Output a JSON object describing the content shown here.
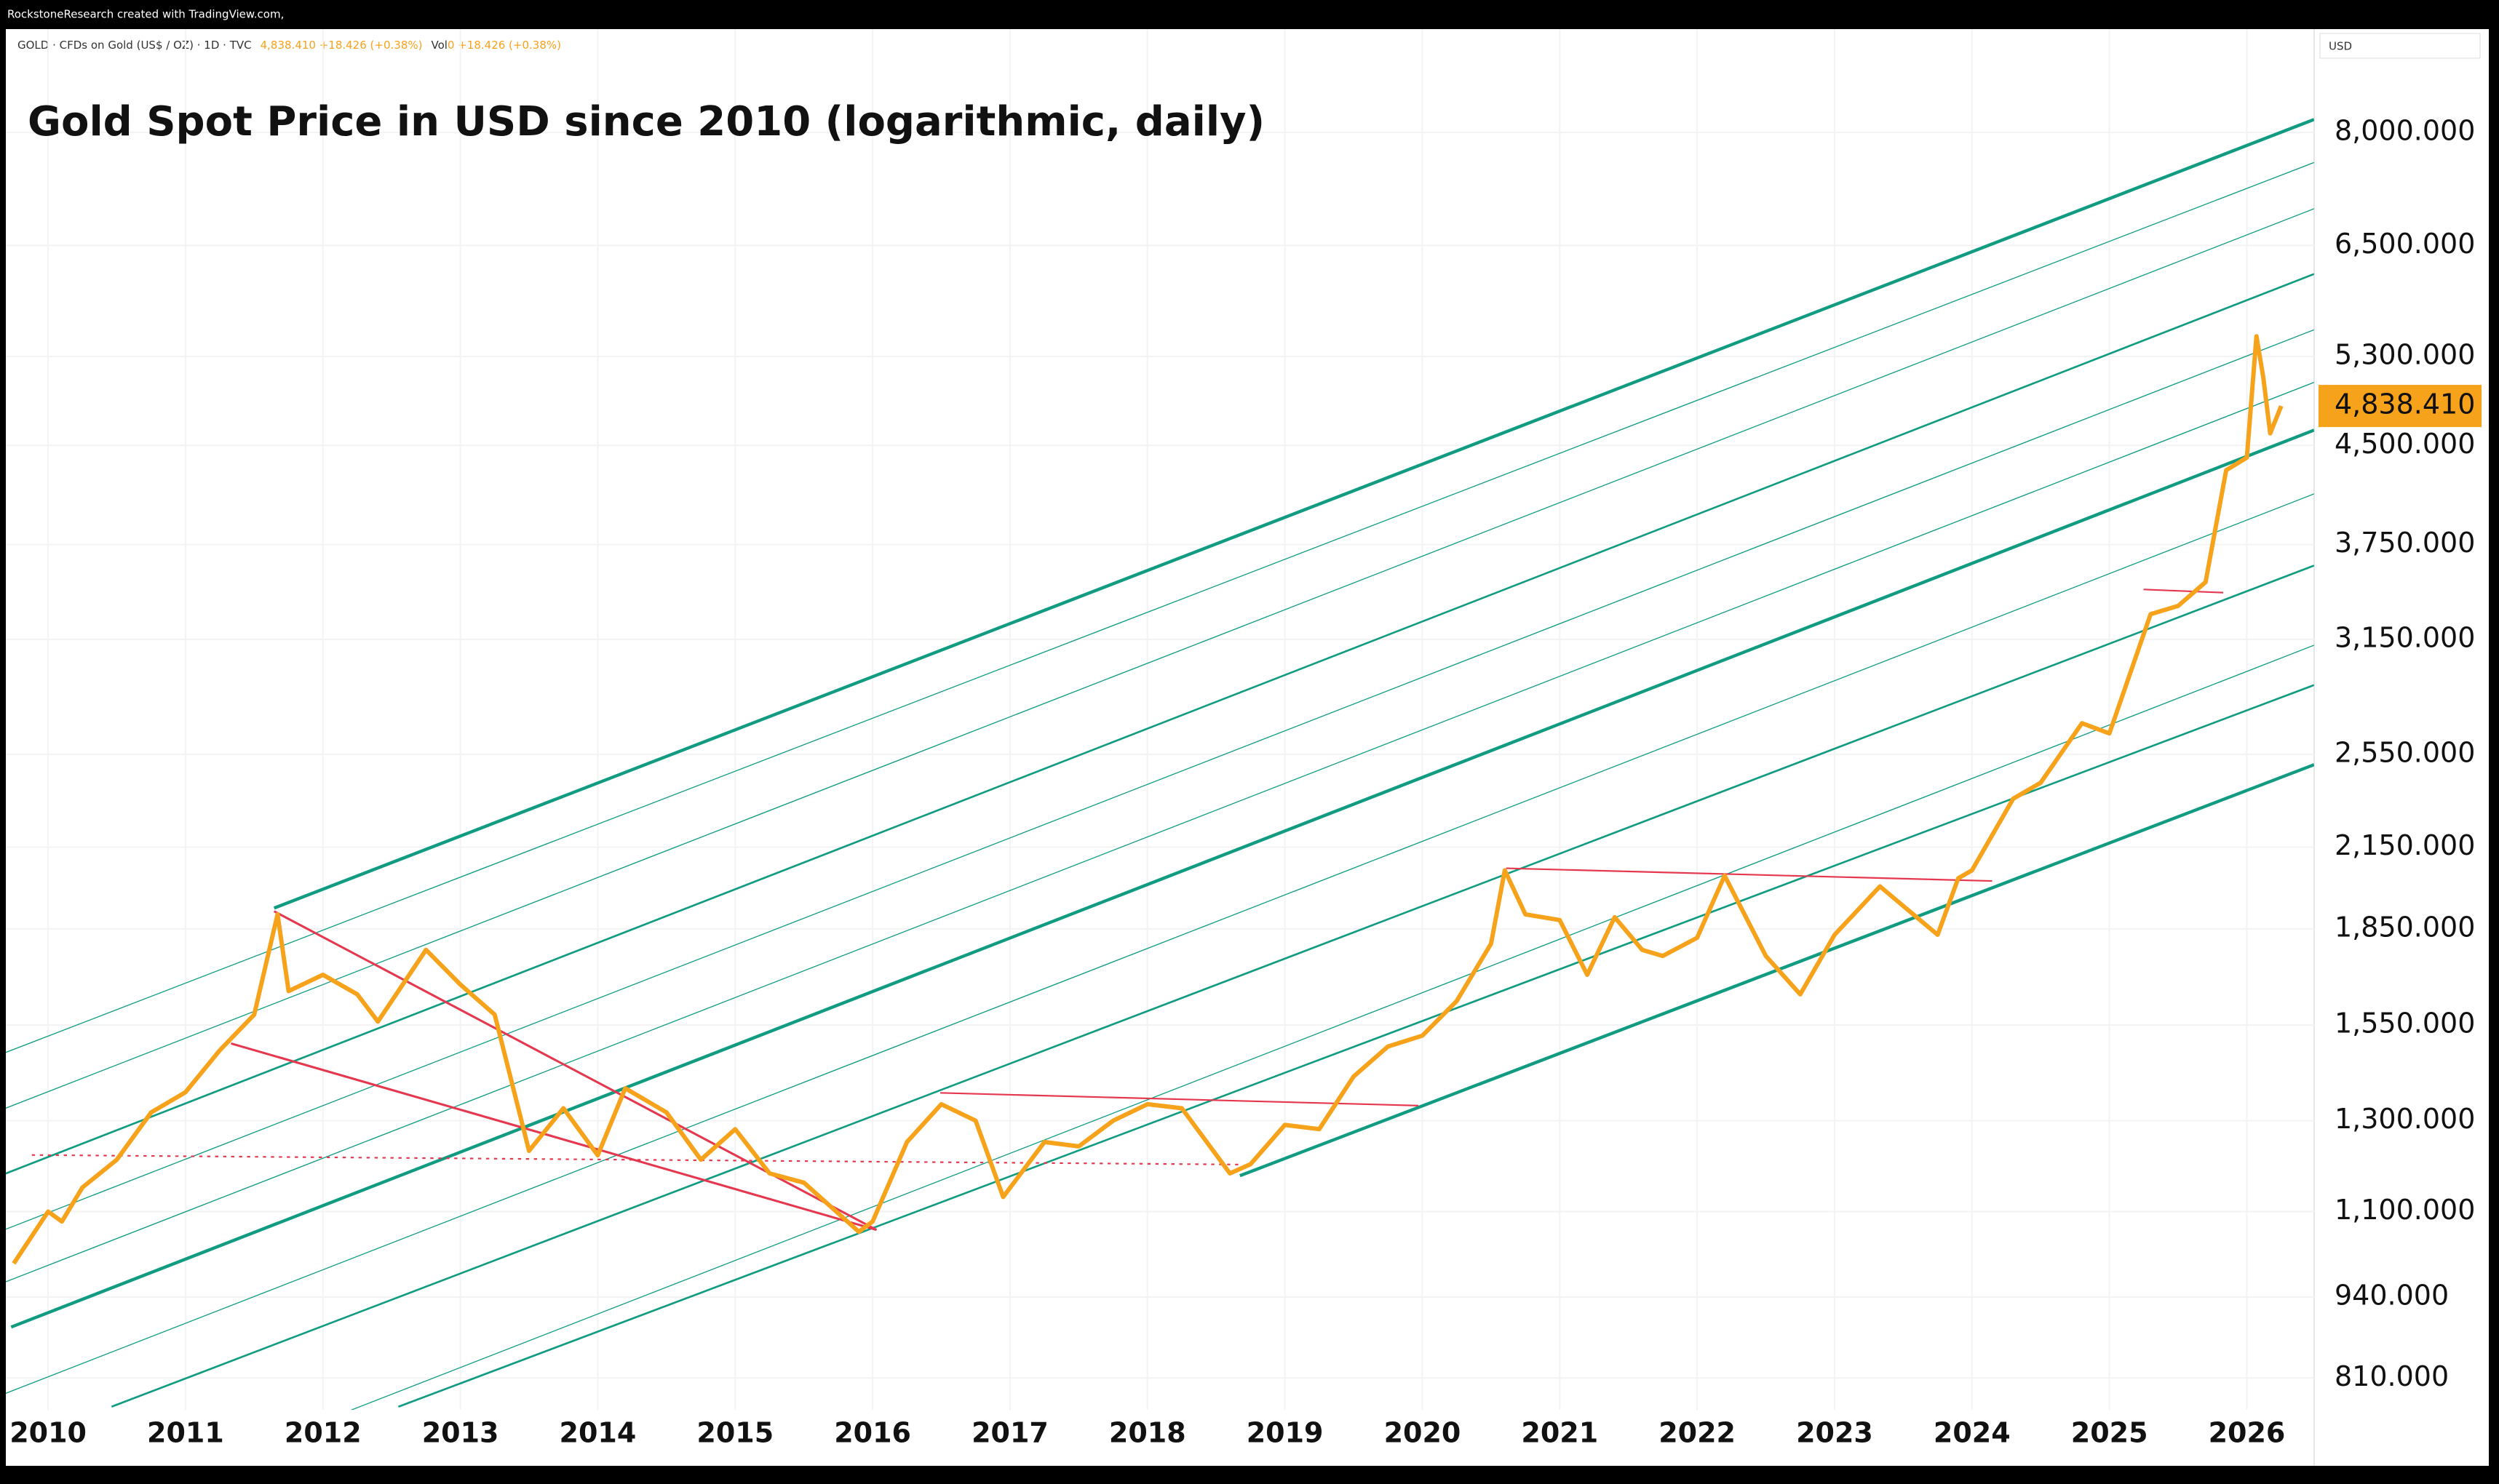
{
  "chart_data": {
    "type": "line",
    "credit": "RockstoneResearch created with TradingView.com,",
    "symbol": "GOLD · CFDs on Gold (US$ / OZ) · 1D · TVC",
    "header_price": "4,838.410 +18.426 (+0.38%)",
    "vol_label": "Vol",
    "vol_value": "0 +18.426 (+0.38%)",
    "currency": "USD",
    "title": "Gold Spot Price in USD since 2010 (logarithmic, daily)",
    "price_label": "4,838.410",
    "log_scale": true,
    "grid": true,
    "xlim": [
      2009.65,
      2026.49
    ],
    "xticks": [
      2010,
      2011,
      2012,
      2013,
      2014,
      2015,
      2016,
      2017,
      2018,
      2019,
      2020,
      2021,
      2022,
      2023,
      2024,
      2025,
      2026
    ],
    "ylim": [
      764,
      9675
    ],
    "yticks": [
      {
        "value": 8000,
        "label": "8,000.000"
      },
      {
        "value": 6500,
        "label": "6,500.000"
      },
      {
        "value": 5300,
        "label": "5,300.000"
      },
      {
        "value": 4500,
        "label": "4,500.000"
      },
      {
        "value": 3750,
        "label": "3,750.000"
      },
      {
        "value": 3150,
        "label": "3,150.000"
      },
      {
        "value": 2550,
        "label": "2,550.000"
      },
      {
        "value": 2150,
        "label": "2,150.000"
      },
      {
        "value": 1850,
        "label": "1,850.000"
      },
      {
        "value": 1550,
        "label": "1,550.000"
      },
      {
        "value": 1300,
        "label": "1,300.000"
      },
      {
        "value": 1100,
        "label": "1,100.000"
      },
      {
        "value": 940,
        "label": "940.000"
      },
      {
        "value": 810,
        "label": "810.000"
      }
    ],
    "x": [
      2009.75,
      2010.0,
      2010.1,
      2010.25,
      2010.5,
      2010.75,
      2011.0,
      2011.25,
      2011.5,
      2011.67,
      2011.75,
      2012.0,
      2012.25,
      2012.4,
      2012.75,
      2013.0,
      2013.25,
      2013.5,
      2013.75,
      2014.0,
      2014.2,
      2014.5,
      2014.75,
      2015.0,
      2015.25,
      2015.5,
      2015.9,
      2016.0,
      2016.25,
      2016.5,
      2016.75,
      2016.95,
      2017.25,
      2017.5,
      2017.75,
      2018.0,
      2018.25,
      2018.6,
      2018.75,
      2019.0,
      2019.25,
      2019.5,
      2019.75,
      2020.0,
      2020.25,
      2020.5,
      2020.6,
      2020.75,
      2021.0,
      2021.2,
      2021.4,
      2021.6,
      2021.75,
      2022.0,
      2022.2,
      2022.5,
      2022.75,
      2023.0,
      2023.33,
      2023.75,
      2023.9,
      2024.0,
      2024.3,
      2024.5,
      2024.8,
      2025.0,
      2025.3,
      2025.5,
      2025.7,
      2025.85,
      2026.0,
      2026.07,
      2026.12,
      2026.17,
      2026.25
    ],
    "series": [
      {
        "name": "GOLD",
        "color": "#f7a21b",
        "values": [
          1000,
          1100,
          1080,
          1150,
          1210,
          1320,
          1370,
          1480,
          1580,
          1900,
          1650,
          1700,
          1640,
          1560,
          1780,
          1670,
          1580,
          1230,
          1330,
          1220,
          1380,
          1320,
          1210,
          1280,
          1180,
          1160,
          1060,
          1080,
          1250,
          1340,
          1300,
          1130,
          1250,
          1240,
          1300,
          1340,
          1330,
          1180,
          1200,
          1290,
          1280,
          1410,
          1490,
          1520,
          1620,
          1800,
          2060,
          1900,
          1880,
          1700,
          1890,
          1780,
          1760,
          1820,
          2040,
          1760,
          1640,
          1830,
          2000,
          1830,
          2030,
          2060,
          2350,
          2420,
          2700,
          2650,
          3300,
          3350,
          3500,
          4300,
          4400,
          5500,
          5100,
          4600,
          4838.41
        ]
      }
    ]
  }
}
